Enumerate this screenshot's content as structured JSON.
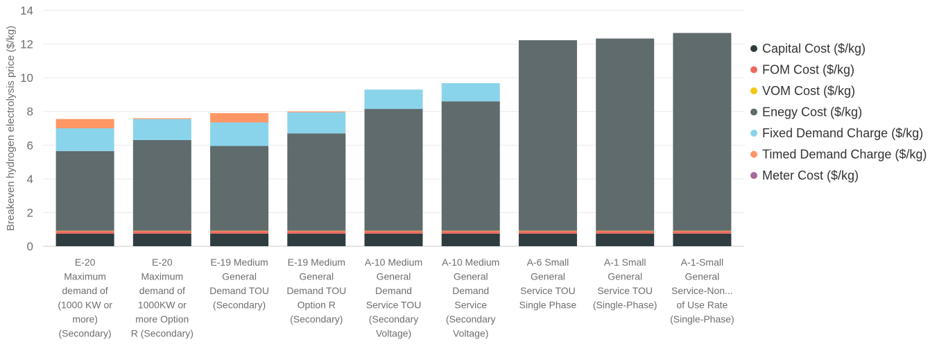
{
  "chart_data": {
    "type": "bar",
    "stacked": true,
    "ylabel": "Breakeven hydrogen electrolysis price ($/kg)",
    "xlabel": "",
    "ylim": [
      0,
      14
    ],
    "yticks": [
      0,
      2,
      4,
      6,
      8,
      10,
      12,
      14
    ],
    "grid": true,
    "legend_position": "right",
    "categories": [
      [
        "E-20",
        "Maximum",
        "demand of",
        "(1000 KW or",
        "more)",
        "(Secondary)"
      ],
      [
        "E-20",
        "Maximum",
        "demand of",
        "1000KW or",
        "more Option",
        "R (Secondary)"
      ],
      [
        "E-19 Medium",
        "General",
        "Demand TOU",
        "(Secondary)"
      ],
      [
        "E-19 Medium",
        "General",
        "Demand TOU",
        "Option R",
        "(Secondary)"
      ],
      [
        "A-10 Medium",
        "General",
        "Demand",
        "Service TOU",
        "(Secondary",
        "Voltage)"
      ],
      [
        "A-10 Medium",
        "General",
        "Demand",
        "Service",
        "(Secondary",
        "Voltage)"
      ],
      [
        "A-6 Small",
        "General",
        "Service TOU",
        "Single Phase"
      ],
      [
        "A-1 Small",
        "General",
        "Service TOU",
        "(Single-Phase)"
      ],
      [
        "A-1-Small",
        "General",
        "Service-Non...",
        "of Use Rate",
        "(Single-Phase)"
      ]
    ],
    "series": [
      {
        "name": "Capital Cost ($/kg)",
        "color": "#2f3d40",
        "values": [
          0.75,
          0.75,
          0.75,
          0.75,
          0.75,
          0.75,
          0.75,
          0.75,
          0.75
        ]
      },
      {
        "name": "FOM Cost ($/kg)",
        "color": "#f0695f",
        "values": [
          0.15,
          0.15,
          0.15,
          0.15,
          0.15,
          0.15,
          0.15,
          0.15,
          0.15
        ]
      },
      {
        "name": "VOM Cost ($/kg)",
        "color": "#f2c811",
        "values": [
          0.02,
          0.02,
          0.02,
          0.02,
          0.02,
          0.02,
          0.02,
          0.02,
          0.02
        ]
      },
      {
        "name": "Enegy Cost ($/kg)",
        "color": "#5f6b6d",
        "values": [
          4.73,
          5.38,
          5.03,
          5.78,
          7.23,
          7.68,
          11.31,
          11.41,
          11.74
        ]
      },
      {
        "name": "Fixed Demand Charge ($/kg)",
        "color": "#8ad4eb",
        "values": [
          1.35,
          1.25,
          1.4,
          1.25,
          1.15,
          1.08,
          0,
          0,
          0
        ]
      },
      {
        "name": "Timed Demand Charge ($/kg)",
        "color": "#fe9666",
        "values": [
          0.55,
          0.05,
          0.55,
          0.05,
          0,
          0,
          0,
          0,
          0
        ]
      },
      {
        "name": "Meter Cost ($/kg)",
        "color": "#a66999",
        "values": [
          0,
          0,
          0,
          0,
          0,
          0,
          0,
          0,
          0
        ]
      }
    ]
  }
}
